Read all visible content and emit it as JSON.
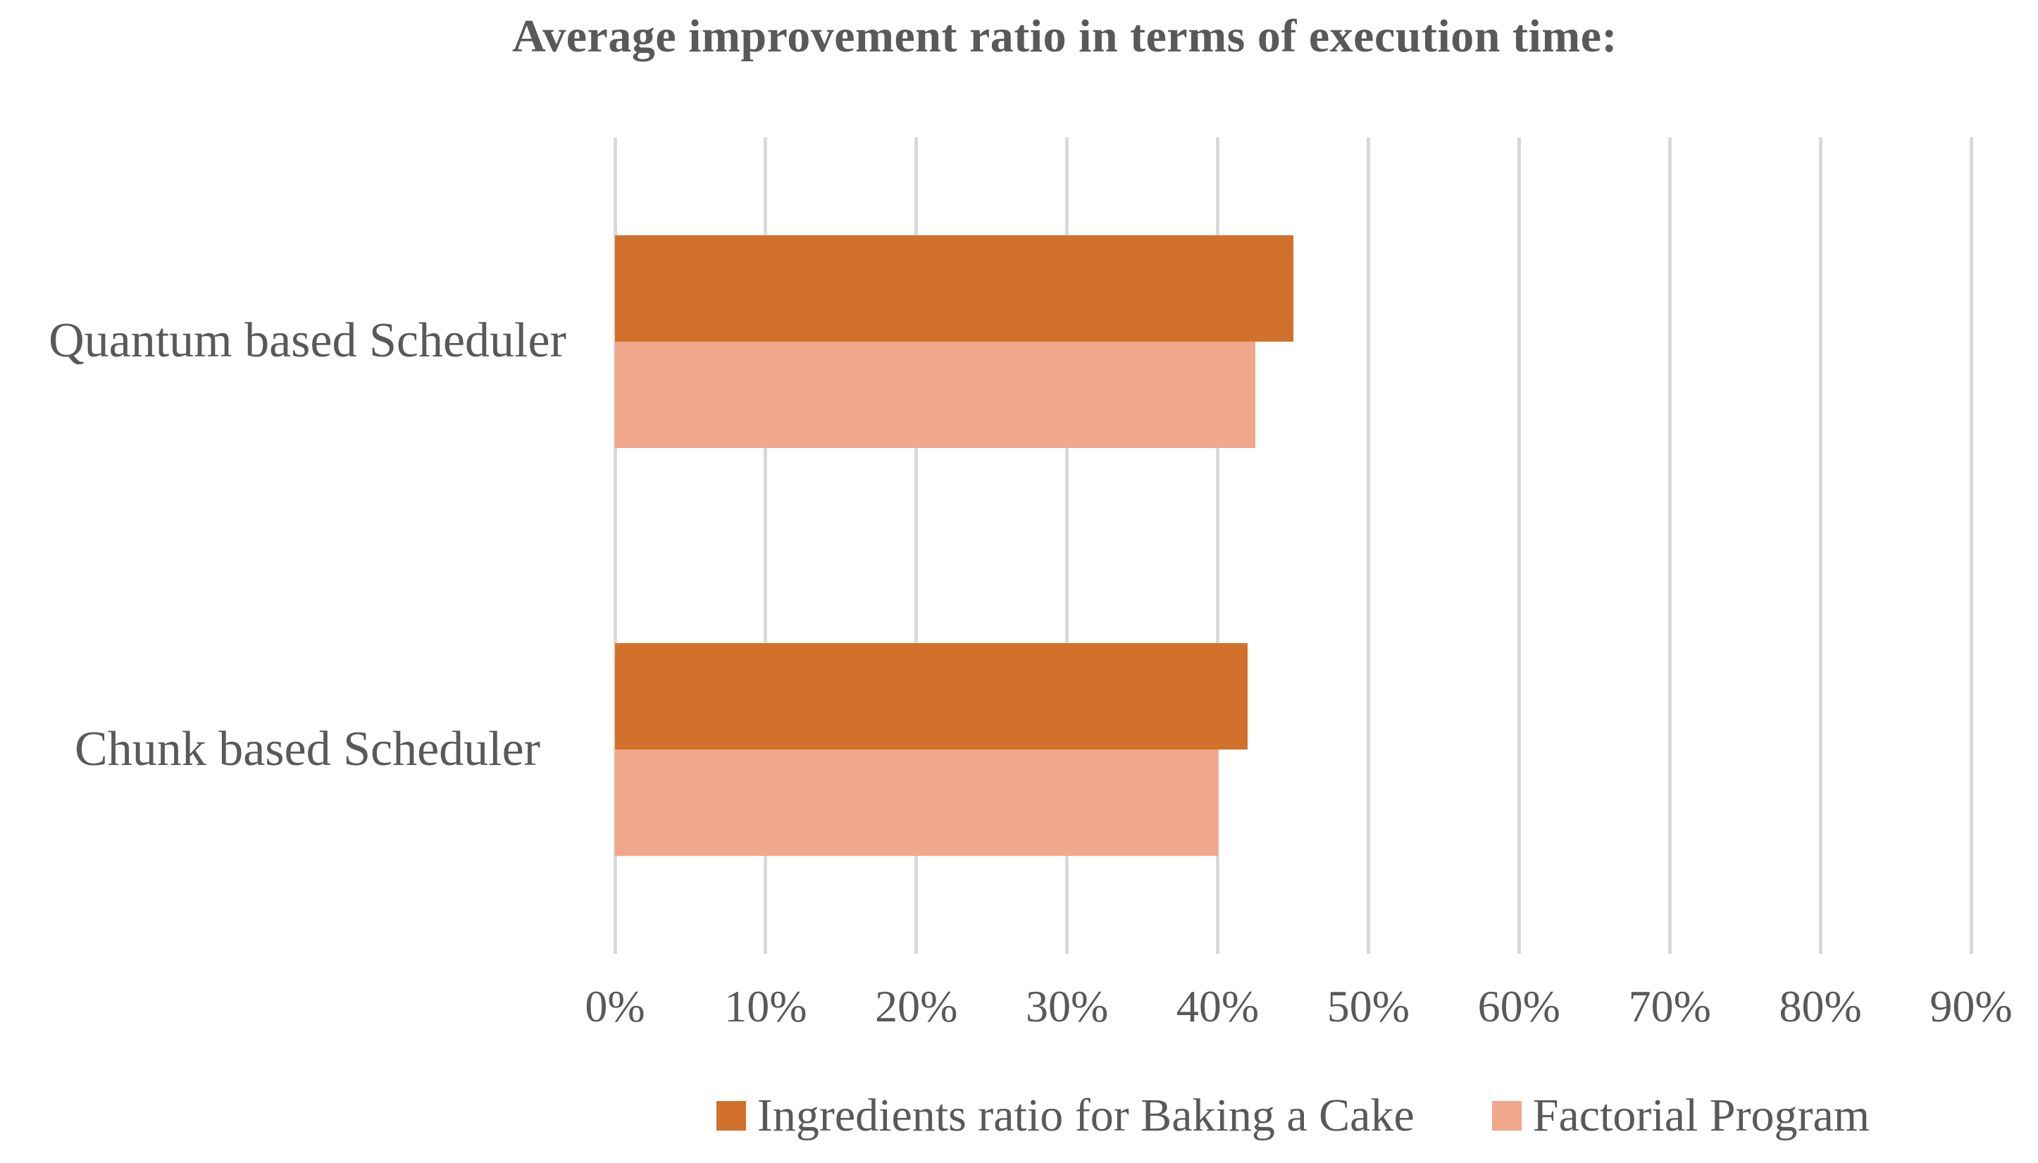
{
  "chart_data": {
    "type": "bar",
    "orientation": "horizontal",
    "title": "Average improvement ratio in terms of execution time:",
    "categories": [
      "Quantum based Scheduler",
      "Chunk based Scheduler"
    ],
    "series": [
      {
        "name": "Ingredients ratio for Baking a Cake",
        "color": "#D2712B",
        "values": [
          45,
          42
        ]
      },
      {
        "name": "Factorial Program",
        "color": "#F0A78B",
        "values": [
          42.5,
          40
        ]
      }
    ],
    "xlim": [
      0,
      90
    ],
    "x_ticks": [
      "0%",
      "10%",
      "20%",
      "30%",
      "40%",
      "50%",
      "60%",
      "70%",
      "80%",
      "90%"
    ],
    "grid": "vertical-only",
    "legend_position": "bottom",
    "text_color": "#595959",
    "gridline_color": "#D9D9D9"
  }
}
